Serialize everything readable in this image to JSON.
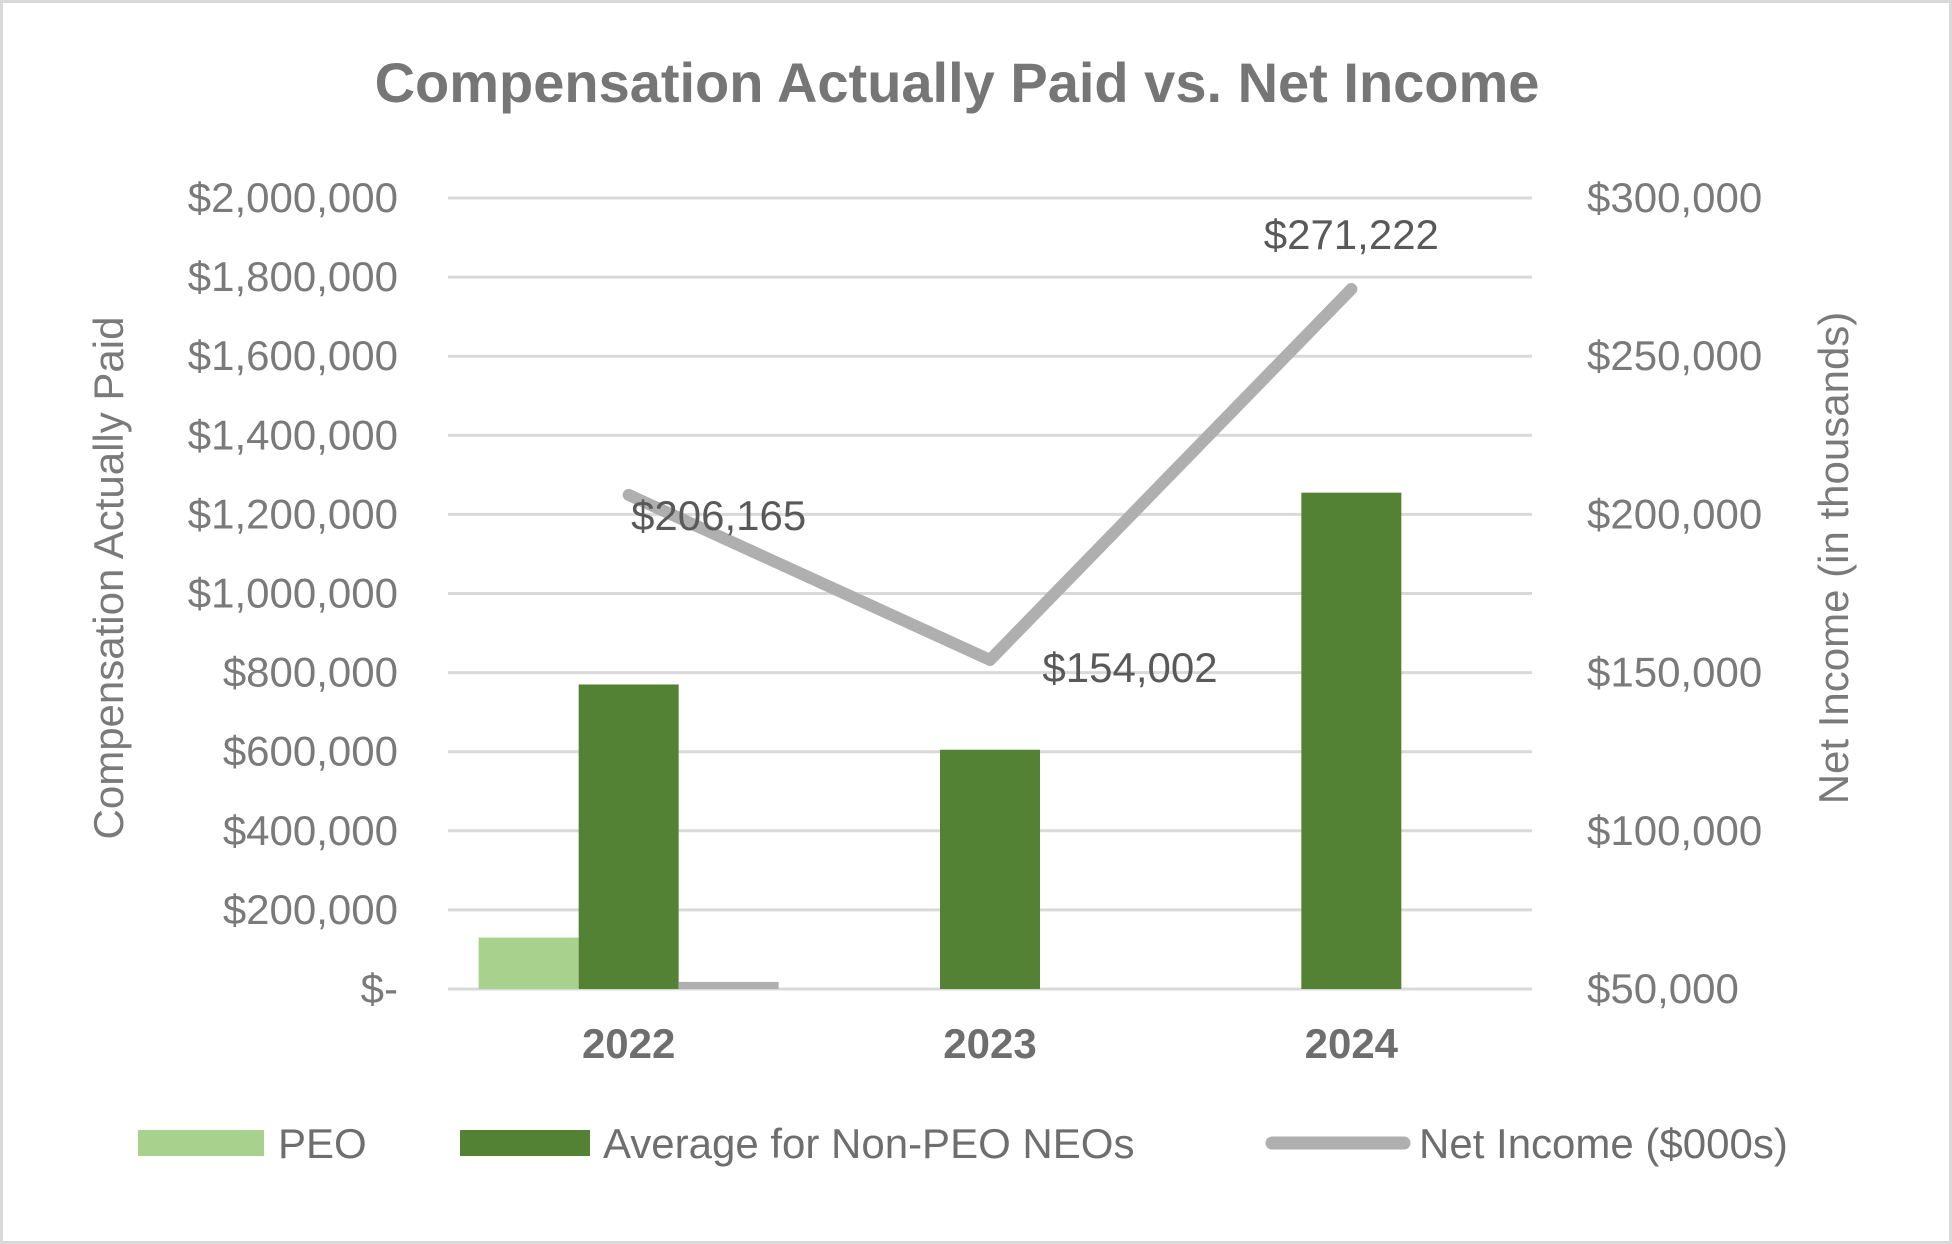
{
  "chart_data": {
    "type": "bar",
    "title": "Compensation Actually Paid vs. Net Income",
    "categories": [
      "2022",
      "2023",
      "2024"
    ],
    "y_left": {
      "label": "Compensation Actually  Paid",
      "range": [
        0,
        2000000
      ],
      "ticks": [
        "$-",
        "$200,000",
        "$400,000",
        "$600,000",
        "$800,000",
        "$1,000,000",
        "$1,200,000",
        "$1,400,000",
        "$1,600,000",
        "$1,800,000",
        "$2,000,000"
      ]
    },
    "y_right": {
      "label": "Net Income (in thousands)",
      "range": [
        50000,
        300000
      ],
      "ticks": [
        "$50,000",
        "$100,000",
        "$150,000",
        "$200,000",
        "$250,000",
        "$300,000"
      ]
    },
    "series": [
      {
        "name": "PEO",
        "type": "bar",
        "axis": "left",
        "color": "#a9d18e",
        "values": [
          130000,
          0,
          0
        ]
      },
      {
        "name": "Average for Non-PEO NEOs",
        "type": "bar",
        "axis": "left",
        "color": "#548235",
        "values": [
          770000,
          605000,
          1255000
        ]
      },
      {
        "name": "Net Income ($000s)",
        "type": "bar",
        "axis": "left",
        "color": "#afafaf",
        "values": [
          18000,
          0,
          0
        ]
      },
      {
        "name": "Net Income ($000s)",
        "type": "line",
        "axis": "right",
        "color": "#afafaf",
        "values": [
          206165,
          154002,
          271222
        ],
        "labels": [
          "$206,165",
          "$154,002",
          "$271,222"
        ]
      }
    ],
    "gridlines": true,
    "legend": {
      "position": "bottom",
      "entries": [
        "PEO",
        "Average for Non-PEO NEOs",
        "Net Income ($000s)"
      ]
    }
  }
}
